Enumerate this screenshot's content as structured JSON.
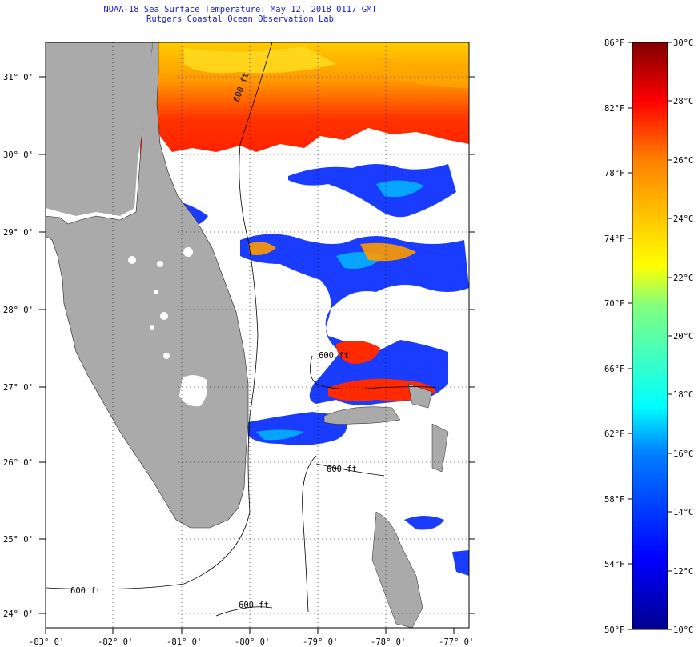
{
  "title": {
    "line1": "NOAA-18 Sea Surface Temperature:  May 12, 2018 0117 GMT",
    "line2": "Rutgers Coastal Ocean Observation Lab"
  },
  "map": {
    "lon_labels": [
      "-83° 0'",
      "-82° 0'",
      "-81° 0'",
      "-80° 0'",
      "-79° 0'",
      "-78° 0'",
      "-77° 0'"
    ],
    "lat_labels": [
      "31° 0'",
      "30° 0'",
      "29° 0'",
      "28° 0'",
      "27° 0'",
      "26° 0'",
      "25° 0'",
      "24° 0'"
    ],
    "isobath_labels": [
      "600 ft",
      "600 ft",
      "600 ft",
      "600 ft",
      "600 ft"
    ],
    "colors": {
      "land": "#aaaaaa",
      "cloud": "#ffffff",
      "frame": "#000000"
    }
  },
  "colorbar": {
    "f_labels": [
      "86°F",
      "82°F",
      "78°F",
      "74°F",
      "70°F",
      "66°F",
      "62°F",
      "58°F",
      "54°F",
      "50°F"
    ],
    "c_labels": [
      "30°C",
      "28°C",
      "26°C",
      "24°C",
      "22°C",
      "20°C",
      "18°C",
      "16°C",
      "14°C",
      "12°C",
      "10°C"
    ],
    "range_c": [
      10,
      30
    ]
  }
}
